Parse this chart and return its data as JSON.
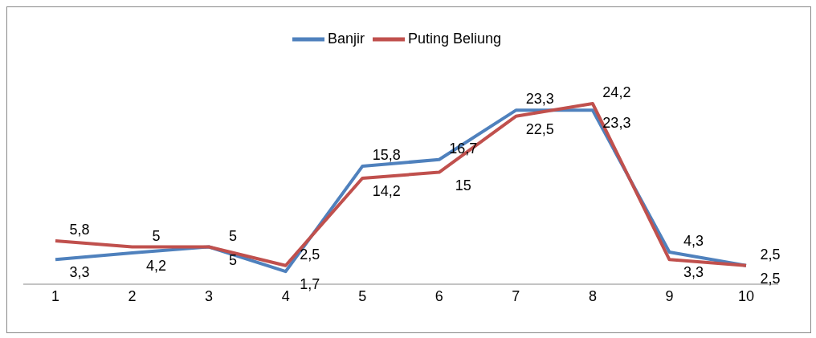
{
  "chart_data": {
    "type": "line",
    "categories": [
      "1",
      "2",
      "3",
      "4",
      "5",
      "6",
      "7",
      "8",
      "9",
      "10"
    ],
    "series": [
      {
        "name": "Banjir",
        "color": "#4f81bd",
        "values": [
          3.3,
          4.2,
          5,
          1.7,
          15.8,
          16.7,
          23.3,
          23.3,
          4.3,
          2.5
        ],
        "value_labels": [
          "3,3",
          "4,2",
          "5",
          "1,7",
          "15,8",
          "16,7",
          "23,3",
          "23,3",
          "4,3",
          "2,5"
        ]
      },
      {
        "name": "Puting Beliung",
        "color": "#c0504d",
        "values": [
          5.8,
          5,
          5,
          2.5,
          14.2,
          15,
          22.5,
          24.2,
          3.3,
          2.5
        ],
        "value_labels": [
          "5,8",
          "5",
          "5",
          "2,5",
          "14,2",
          "15",
          "22,5",
          "24,2",
          "3,3",
          "2,5"
        ]
      }
    ],
    "legend": "top",
    "grid": false,
    "marker": "none",
    "line_style": "solid",
    "tick_labels": "x"
  }
}
